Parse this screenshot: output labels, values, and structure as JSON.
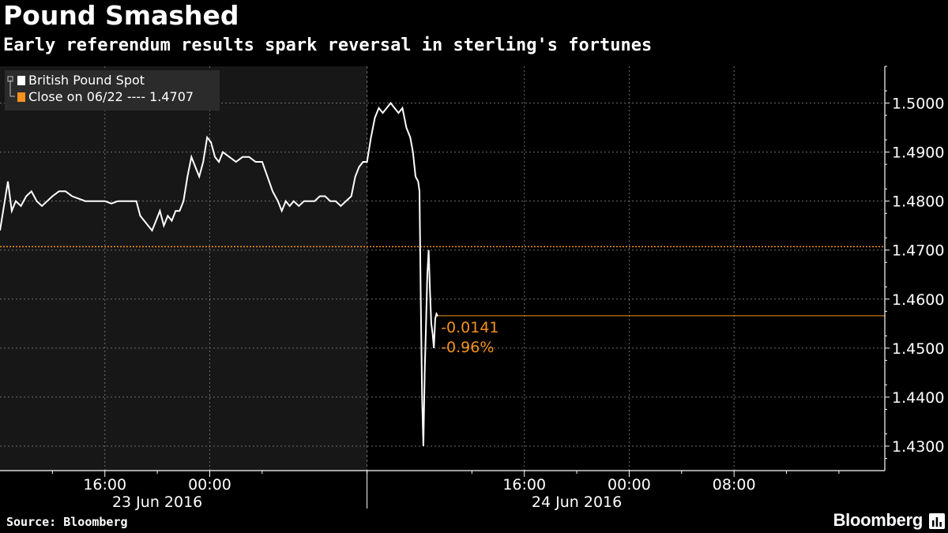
{
  "title": "Pound Smashed",
  "subtitle": "Early referendum results spark reversal in sterling's fortunes",
  "source": "Source: Bloomberg",
  "brand": "Bloomberg",
  "colors": {
    "background": "#000000",
    "shaded_region": "#171717",
    "series": "#ffffff",
    "reference": "#f5921e",
    "grid": "#6e6e6e"
  },
  "chart_data": {
    "type": "line",
    "legend_position": "top-left",
    "grid": true,
    "x_unit": "hours from 23 Jun 2016 08:00",
    "xlim": [
      0,
      67.5
    ],
    "ylim": [
      1.425,
      1.5075
    ],
    "y_ticks": [
      "1.4300",
      "1.4400",
      "1.4500",
      "1.4600",
      "1.4700",
      "1.4800",
      "1.4900",
      "1.5000"
    ],
    "y_tick_values": [
      1.43,
      1.44,
      1.45,
      1.46,
      1.47,
      1.48,
      1.49,
      1.5
    ],
    "x_ticks": [
      {
        "x": 8,
        "label": "16:00"
      },
      {
        "x": 16,
        "label": "00:00"
      },
      {
        "x": 40,
        "label": "16:00"
      },
      {
        "x": 48,
        "label": "00:00"
      },
      {
        "x": 56,
        "label": "08:00"
      }
    ],
    "x_minor_ticks": [
      4,
      12,
      20,
      28,
      36,
      44,
      52,
      60,
      64
    ],
    "day_labels": [
      {
        "x": 12,
        "label": "23 Jun 2016"
      },
      {
        "x": 44,
        "label": "24 Jun 2016"
      }
    ],
    "day_separator": 28,
    "shaded_range": [
      0,
      28
    ],
    "legend": [
      {
        "label": "British Pound Spot",
        "color": "#ffffff"
      },
      {
        "label": "Close on 06/22 ---- 1.4707",
        "color": "#f5921e"
      }
    ],
    "series": [
      {
        "name": "British Pound Spot",
        "color": "#ffffff",
        "points": [
          [
            0.0,
            1.474
          ],
          [
            0.3,
            1.479
          ],
          [
            0.6,
            1.484
          ],
          [
            0.9,
            1.478
          ],
          [
            1.2,
            1.48
          ],
          [
            1.6,
            1.479
          ],
          [
            2.0,
            1.481
          ],
          [
            2.4,
            1.482
          ],
          [
            2.8,
            1.48
          ],
          [
            3.2,
            1.479
          ],
          [
            3.6,
            1.48
          ],
          [
            4.0,
            1.481
          ],
          [
            4.5,
            1.482
          ],
          [
            5.0,
            1.482
          ],
          [
            5.5,
            1.481
          ],
          [
            6.0,
            1.4805
          ],
          [
            6.5,
            1.48
          ],
          [
            7.0,
            1.48
          ],
          [
            7.5,
            1.48
          ],
          [
            8.0,
            1.48
          ],
          [
            8.5,
            1.4795
          ],
          [
            9.0,
            1.48
          ],
          [
            9.5,
            1.48
          ],
          [
            10.0,
            1.48
          ],
          [
            10.4,
            1.48
          ],
          [
            10.7,
            1.477
          ],
          [
            11.0,
            1.476
          ],
          [
            11.3,
            1.475
          ],
          [
            11.6,
            1.474
          ],
          [
            11.9,
            1.476
          ],
          [
            12.2,
            1.478
          ],
          [
            12.5,
            1.475
          ],
          [
            12.8,
            1.477
          ],
          [
            13.1,
            1.476
          ],
          [
            13.4,
            1.478
          ],
          [
            13.7,
            1.478
          ],
          [
            14.0,
            1.48
          ],
          [
            14.3,
            1.485
          ],
          [
            14.6,
            1.489
          ],
          [
            14.9,
            1.487
          ],
          [
            15.2,
            1.485
          ],
          [
            15.5,
            1.488
          ],
          [
            15.8,
            1.493
          ],
          [
            16.1,
            1.492
          ],
          [
            16.4,
            1.489
          ],
          [
            16.7,
            1.488
          ],
          [
            17.0,
            1.49
          ],
          [
            17.5,
            1.489
          ],
          [
            18.0,
            1.488
          ],
          [
            18.5,
            1.489
          ],
          [
            19.0,
            1.489
          ],
          [
            19.5,
            1.488
          ],
          [
            20.0,
            1.488
          ],
          [
            20.4,
            1.485
          ],
          [
            20.8,
            1.482
          ],
          [
            21.2,
            1.48
          ],
          [
            21.5,
            1.478
          ],
          [
            21.8,
            1.48
          ],
          [
            22.1,
            1.479
          ],
          [
            22.4,
            1.48
          ],
          [
            22.8,
            1.479
          ],
          [
            23.2,
            1.48
          ],
          [
            23.6,
            1.48
          ],
          [
            24.0,
            1.48
          ],
          [
            24.4,
            1.481
          ],
          [
            24.8,
            1.481
          ],
          [
            25.2,
            1.48
          ],
          [
            25.6,
            1.48
          ],
          [
            26.0,
            1.479
          ],
          [
            26.4,
            1.48
          ],
          [
            26.8,
            1.481
          ],
          [
            27.1,
            1.485
          ],
          [
            27.4,
            1.487
          ],
          [
            27.7,
            1.488
          ],
          [
            28.0,
            1.488
          ],
          [
            28.3,
            1.493
          ],
          [
            28.6,
            1.497
          ],
          [
            28.9,
            1.499
          ],
          [
            29.2,
            1.498
          ],
          [
            29.5,
            1.499
          ],
          [
            29.8,
            1.5
          ],
          [
            30.1,
            1.499
          ],
          [
            30.4,
            1.498
          ],
          [
            30.7,
            1.499
          ],
          [
            31.0,
            1.495
          ],
          [
            31.3,
            1.493
          ],
          [
            31.5,
            1.49
          ],
          [
            31.7,
            1.485
          ],
          [
            31.9,
            1.484
          ],
          [
            32.0,
            1.482
          ],
          [
            32.1,
            1.46
          ],
          [
            32.2,
            1.44
          ],
          [
            32.3,
            1.43
          ],
          [
            32.4,
            1.445
          ],
          [
            32.5,
            1.455
          ],
          [
            32.6,
            1.465
          ],
          [
            32.7,
            1.47
          ],
          [
            32.8,
            1.462
          ],
          [
            32.9,
            1.455
          ],
          [
            33.0,
            1.453
          ],
          [
            33.1,
            1.45
          ],
          [
            33.2,
            1.456
          ],
          [
            33.3,
            1.457
          ],
          [
            33.4,
            1.4565
          ]
        ]
      },
      {
        "name": "Close on 06/22",
        "color": "#f5921e",
        "value": 1.4707
      }
    ],
    "last_value": 1.4566,
    "annotations": [
      {
        "label": "-0.0141",
        "color": "#f5921e"
      },
      {
        "label": "-0.96%",
        "color": "#f5921e"
      }
    ]
  }
}
